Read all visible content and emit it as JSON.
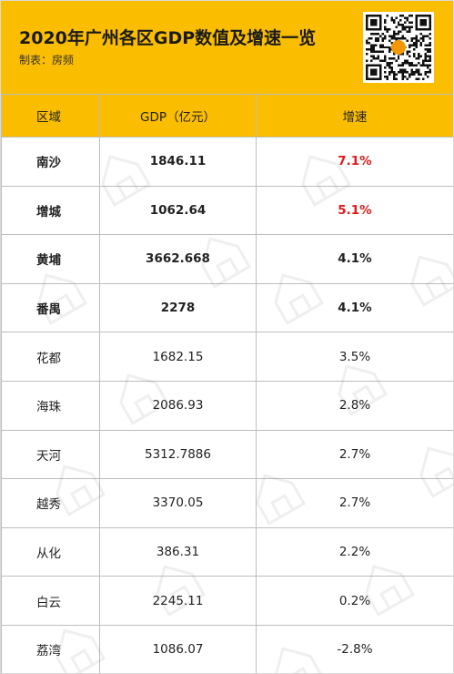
{
  "header": {
    "title": "2020年广州各区GDP数值及增速一览",
    "subtitle": "制表：房频"
  },
  "table": {
    "columns": [
      "区域",
      "GDP（亿元）",
      "增速"
    ],
    "rows": [
      {
        "district": "南沙",
        "gdp": "1846.11",
        "growth": "7.1%",
        "bold": true,
        "red": true
      },
      {
        "district": "增城",
        "gdp": "1062.64",
        "growth": "5.1%",
        "bold": true,
        "red": true
      },
      {
        "district": "黄埔",
        "gdp": "3662.668",
        "growth": "4.1%",
        "bold": true,
        "red": false
      },
      {
        "district": "番禺",
        "gdp": "2278",
        "growth": "4.1%",
        "bold": true,
        "red": false
      },
      {
        "district": "花都",
        "gdp": "1682.15",
        "growth": "3.5%",
        "bold": false,
        "red": false
      },
      {
        "district": "海珠",
        "gdp": "2086.93",
        "growth": "2.8%",
        "bold": false,
        "red": false
      },
      {
        "district": "天河",
        "gdp": "5312.7886",
        "growth": "2.7%",
        "bold": false,
        "red": false
      },
      {
        "district": "越秀",
        "gdp": "3370.05",
        "growth": "2.7%",
        "bold": false,
        "red": false
      },
      {
        "district": "从化",
        "gdp": "386.31",
        "growth": "2.2%",
        "bold": false,
        "red": false
      },
      {
        "district": "白云",
        "gdp": "2245.11",
        "growth": "0.2%",
        "bold": false,
        "red": false
      },
      {
        "district": "荔湾",
        "gdp": "1086.07",
        "growth": "-2.8%",
        "bold": false,
        "red": false
      }
    ]
  },
  "colors": {
    "header_bg": "#fabd00",
    "highlight_red": "#e01a1a",
    "border": "#bdbdbd"
  },
  "icons": {
    "qr": "qr-code-icon",
    "watermark": "house-watermark-icon"
  }
}
